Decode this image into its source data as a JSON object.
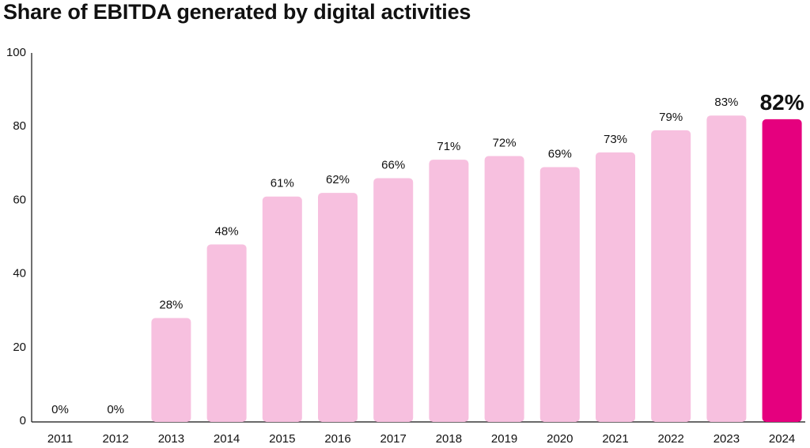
{
  "chart_data": {
    "type": "bar",
    "title": "Share of EBITDA generated by digital activities",
    "xlabel": "",
    "ylabel": "",
    "ylim": [
      0,
      100
    ],
    "yticks": [
      0,
      20,
      40,
      60,
      80,
      100
    ],
    "grid": false,
    "categories": [
      "2011",
      "2012",
      "2013",
      "2014",
      "2015",
      "2016",
      "2017",
      "2018",
      "2019",
      "2020",
      "2021",
      "2022",
      "2023",
      "2024"
    ],
    "values": [
      0,
      0,
      28,
      48,
      61,
      62,
      66,
      71,
      72,
      69,
      73,
      79,
      83,
      82
    ],
    "data_labels": [
      "0%",
      "0%",
      "28%",
      "48%",
      "61%",
      "62%",
      "66%",
      "71%",
      "72%",
      "69%",
      "73%",
      "79%",
      "83%",
      "82%"
    ],
    "highlight_category": "2024",
    "colors": {
      "bar": "#f7c0df",
      "highlight": "#e5007e",
      "text": "#111111",
      "axis": "#111111"
    }
  }
}
